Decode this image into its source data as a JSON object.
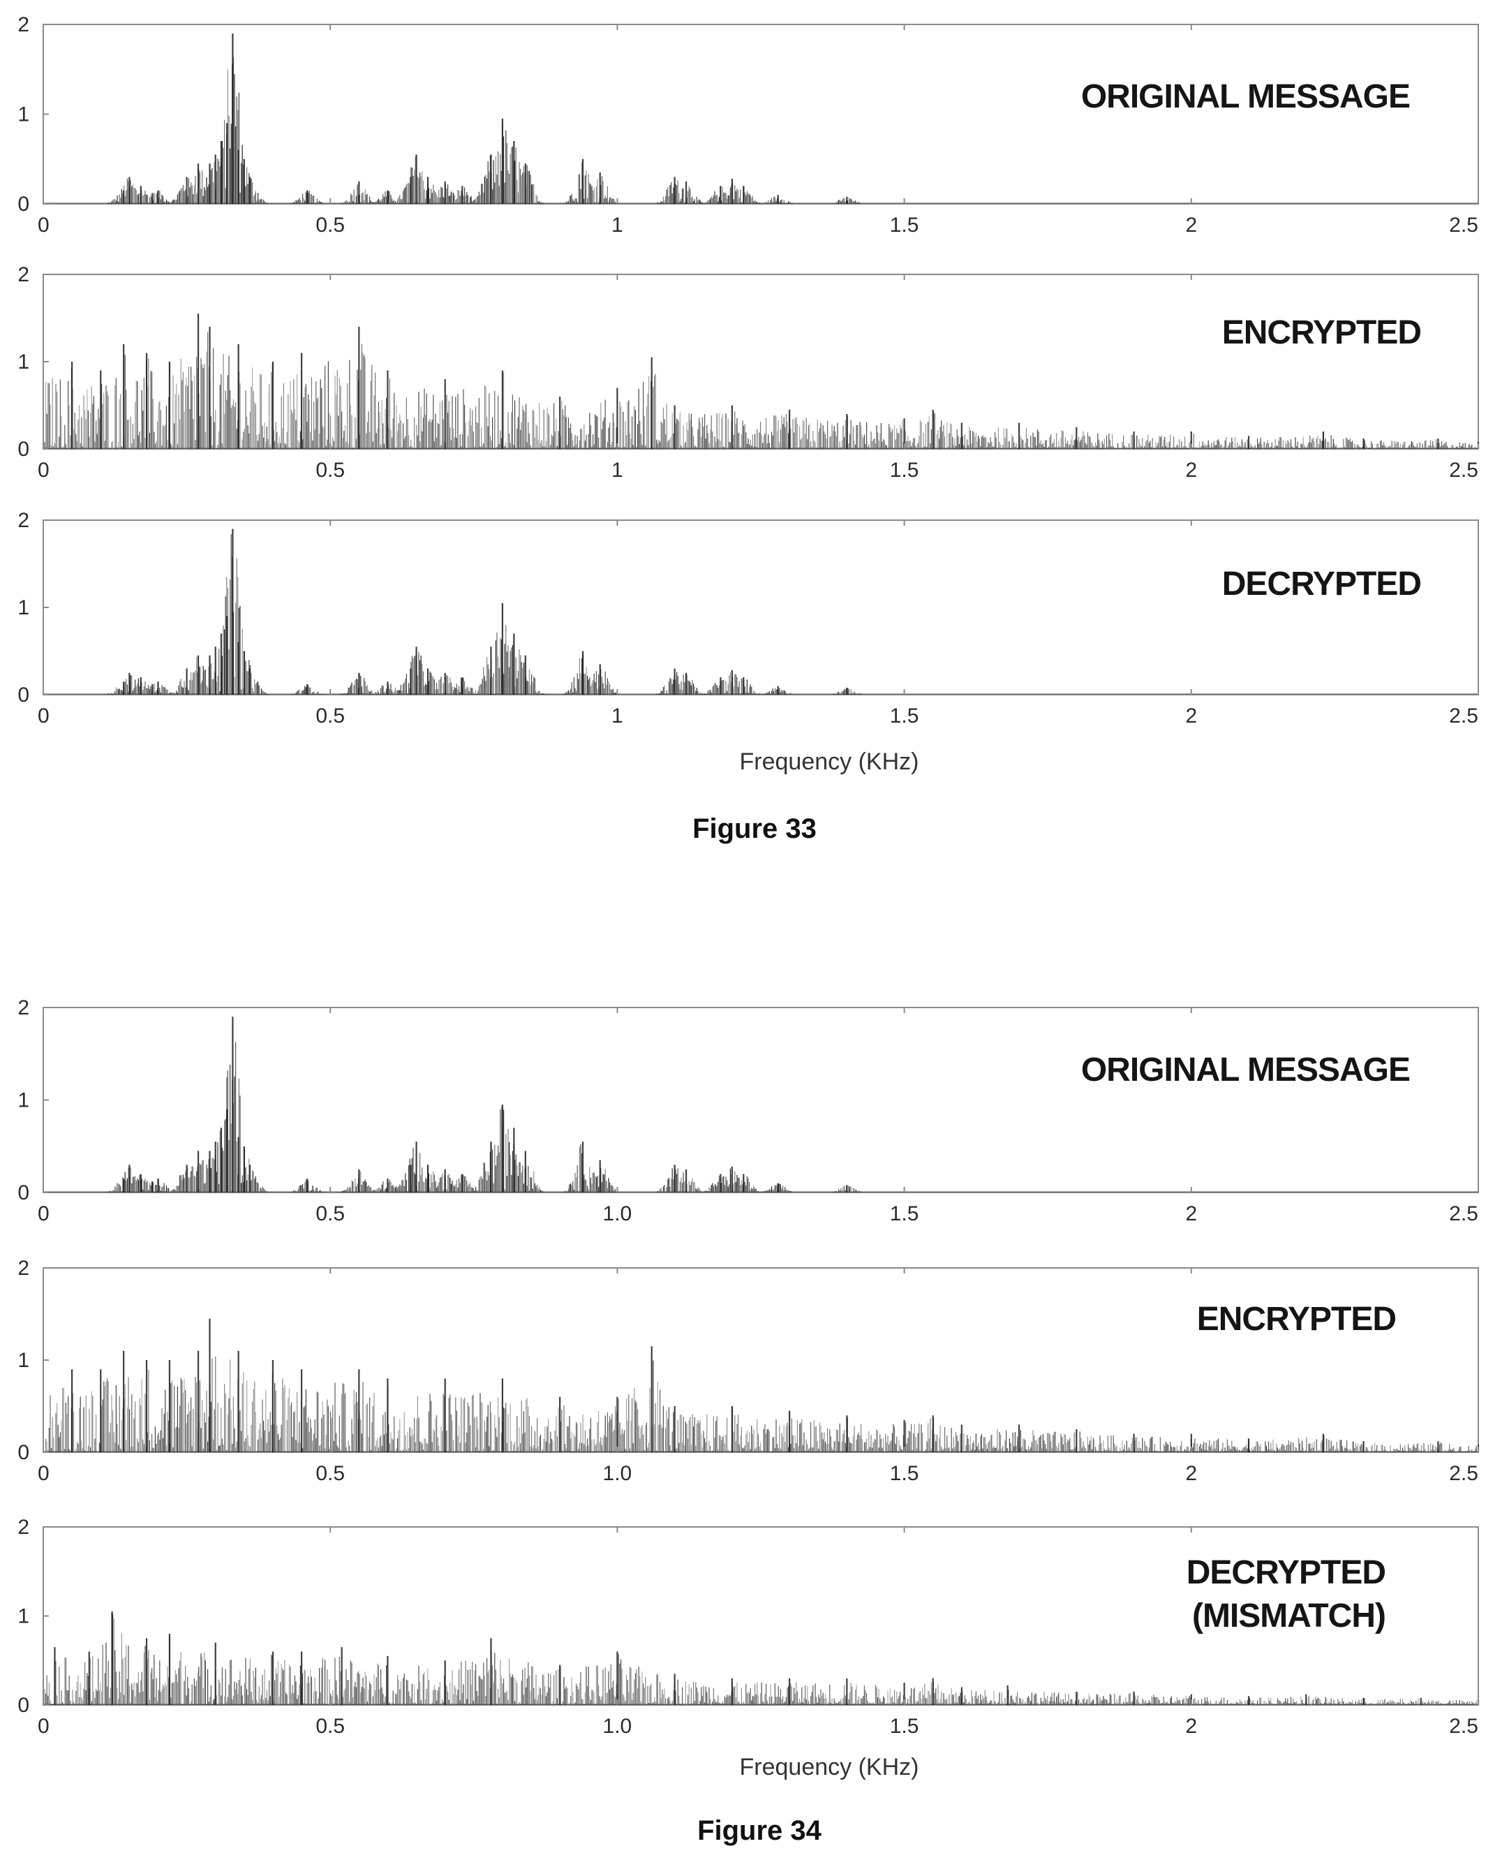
{
  "figures": [
    {
      "caption": "Figure 33",
      "xlabel": "Frequency (KHz)",
      "panels": [
        {
          "label_lines": [
            "ORIGINAL MESSAGE"
          ],
          "xtick_labels": [
            "0",
            "0.5",
            "1",
            "1.5",
            "2",
            "2.5"
          ]
        },
        {
          "label_lines": [
            "ENCRYPTED"
          ],
          "xtick_labels": [
            "0",
            "0.5",
            "1",
            "1.5",
            "2",
            "2.5"
          ]
        },
        {
          "label_lines": [
            "DECRYPTED"
          ],
          "xtick_labels": [
            "0",
            "0.5",
            "1",
            "1.5",
            "2",
            "2.5"
          ]
        }
      ]
    },
    {
      "caption": "Figure 34",
      "xlabel": "Frequency (KHz)",
      "panels": [
        {
          "label_lines": [
            "ORIGINAL MESSAGE"
          ],
          "xtick_labels": [
            "0",
            "0.5",
            "1.0",
            "1.5",
            "2",
            "2.5"
          ]
        },
        {
          "label_lines": [
            "ENCRYPTED"
          ],
          "xtick_labels": [
            "0",
            "0.5",
            "1.0",
            "1.5",
            "2",
            "2.5"
          ]
        },
        {
          "label_lines": [
            "DECRYPTED",
            "(MISMATCH)"
          ],
          "xtick_labels": [
            "0",
            "0.5",
            "1.0",
            "1.5",
            "2",
            "2.5"
          ]
        }
      ]
    }
  ],
  "colors": {
    "trace": "#1c1c1c",
    "frame": "#8a8a8a",
    "text": "#151515"
  },
  "chart_data": [
    {
      "type": "area",
      "title": "",
      "panel": "ORIGINAL MESSAGE",
      "figure": "Figure 33",
      "xlabel": "",
      "ylabel": "",
      "xlim": [
        0,
        2.5
      ],
      "ylim": [
        0,
        2
      ],
      "yticks": [
        0,
        1,
        2
      ],
      "x": [
        0.14,
        0.15,
        0.17,
        0.19,
        0.2,
        0.25,
        0.27,
        0.29,
        0.3,
        0.31,
        0.32,
        0.33,
        0.34,
        0.35,
        0.36,
        0.46,
        0.55,
        0.6,
        0.64,
        0.65,
        0.67,
        0.7,
        0.73,
        0.78,
        0.8,
        0.82,
        0.84,
        0.94,
        0.97,
        1.1,
        1.12,
        1.18,
        1.2,
        1.22,
        1.28,
        1.4
      ],
      "y": [
        0.15,
        0.3,
        0.2,
        0.12,
        0.15,
        0.3,
        0.45,
        0.45,
        0.55,
        0.7,
        0.9,
        1.9,
        0.6,
        0.5,
        0.3,
        0.15,
        0.25,
        0.15,
        0.3,
        0.55,
        0.3,
        0.25,
        0.2,
        0.55,
        0.95,
        0.7,
        0.45,
        0.5,
        0.35,
        0.3,
        0.25,
        0.2,
        0.28,
        0.2,
        0.1,
        0.08
      ]
    },
    {
      "type": "area",
      "title": "",
      "panel": "ENCRYPTED",
      "figure": "Figure 33",
      "xlabel": "",
      "ylabel": "",
      "xlim": [
        0,
        2.5
      ],
      "ylim": [
        0,
        2
      ],
      "yticks": [
        0,
        1,
        2
      ],
      "x": [
        0.05,
        0.1,
        0.14,
        0.18,
        0.22,
        0.27,
        0.29,
        0.34,
        0.4,
        0.45,
        0.55,
        0.6,
        0.7,
        0.8,
        0.9,
        1.0,
        1.06,
        1.1,
        1.2,
        1.3,
        1.4,
        1.5,
        1.55,
        1.6,
        1.7,
        1.8,
        1.9,
        2.0,
        2.1,
        2.23,
        2.3,
        2.43,
        2.5
      ],
      "y": [
        1.0,
        0.9,
        1.2,
        1.1,
        1.0,
        1.55,
        1.4,
        1.2,
        1.0,
        1.1,
        1.4,
        0.9,
        0.8,
        0.9,
        0.6,
        0.7,
        1.05,
        0.5,
        0.5,
        0.45,
        0.4,
        0.35,
        0.45,
        0.3,
        0.3,
        0.25,
        0.2,
        0.2,
        0.15,
        0.2,
        0.12,
        0.12,
        0.08
      ]
    },
    {
      "type": "area",
      "title": "",
      "panel": "DECRYPTED",
      "figure": "Figure 33",
      "xlabel": "",
      "ylabel": "",
      "xlim": [
        0,
        2.5
      ],
      "ylim": [
        0,
        2
      ],
      "yticks": [
        0,
        1,
        2
      ],
      "x": [
        0.14,
        0.15,
        0.17,
        0.19,
        0.2,
        0.25,
        0.27,
        0.29,
        0.3,
        0.31,
        0.32,
        0.33,
        0.34,
        0.35,
        0.36,
        0.46,
        0.55,
        0.6,
        0.64,
        0.65,
        0.67,
        0.7,
        0.73,
        0.78,
        0.8,
        0.82,
        0.84,
        0.94,
        0.97,
        1.1,
        1.12,
        1.18,
        1.2,
        1.22,
        1.28,
        1.4
      ],
      "y": [
        0.15,
        0.25,
        0.2,
        0.12,
        0.15,
        0.3,
        0.45,
        0.45,
        0.55,
        0.7,
        0.9,
        1.9,
        0.6,
        0.5,
        0.3,
        0.12,
        0.25,
        0.15,
        0.3,
        0.55,
        0.3,
        0.25,
        0.2,
        0.55,
        1.05,
        0.7,
        0.45,
        0.5,
        0.35,
        0.3,
        0.25,
        0.2,
        0.28,
        0.2,
        0.1,
        0.08
      ]
    },
    {
      "type": "area",
      "title": "",
      "panel": "ORIGINAL MESSAGE",
      "figure": "Figure 34",
      "xlabel": "",
      "ylabel": "",
      "xlim": [
        0,
        2.5
      ],
      "ylim": [
        0,
        2
      ],
      "yticks": [
        0,
        1,
        2
      ],
      "x": [
        0.14,
        0.15,
        0.17,
        0.19,
        0.2,
        0.25,
        0.27,
        0.29,
        0.3,
        0.31,
        0.32,
        0.33,
        0.34,
        0.35,
        0.36,
        0.46,
        0.55,
        0.6,
        0.64,
        0.65,
        0.67,
        0.7,
        0.73,
        0.78,
        0.8,
        0.82,
        0.84,
        0.94,
        0.97,
        1.1,
        1.12,
        1.18,
        1.2,
        1.22,
        1.28,
        1.4
      ],
      "y": [
        0.15,
        0.3,
        0.2,
        0.12,
        0.15,
        0.3,
        0.45,
        0.45,
        0.55,
        0.7,
        0.9,
        1.9,
        0.6,
        0.5,
        0.3,
        0.15,
        0.25,
        0.15,
        0.3,
        0.55,
        0.3,
        0.25,
        0.2,
        0.55,
        0.95,
        0.7,
        0.45,
        0.55,
        0.35,
        0.3,
        0.25,
        0.2,
        0.28,
        0.2,
        0.1,
        0.08
      ]
    },
    {
      "type": "area",
      "title": "",
      "panel": "ENCRYPTED",
      "figure": "Figure 34",
      "xlabel": "",
      "ylabel": "",
      "xlim": [
        0,
        2.5
      ],
      "ylim": [
        0,
        2
      ],
      "yticks": [
        0,
        1,
        2
      ],
      "x": [
        0.05,
        0.1,
        0.14,
        0.18,
        0.22,
        0.27,
        0.29,
        0.34,
        0.4,
        0.45,
        0.55,
        0.6,
        0.7,
        0.8,
        0.9,
        1.0,
        1.06,
        1.1,
        1.2,
        1.3,
        1.4,
        1.5,
        1.55,
        1.6,
        1.7,
        1.8,
        1.9,
        2.0,
        2.1,
        2.23,
        2.3,
        2.43,
        2.5
      ],
      "y": [
        0.9,
        0.9,
        1.1,
        1.0,
        1.0,
        1.1,
        1.45,
        1.1,
        1.0,
        0.9,
        0.9,
        0.8,
        0.8,
        0.8,
        0.6,
        0.6,
        1.15,
        0.5,
        0.5,
        0.45,
        0.4,
        0.35,
        0.4,
        0.3,
        0.3,
        0.25,
        0.2,
        0.2,
        0.15,
        0.2,
        0.12,
        0.12,
        0.08
      ]
    },
    {
      "type": "area",
      "title": "",
      "panel": "DECRYPTED (MISMATCH)",
      "figure": "Figure 34",
      "xlabel": "",
      "ylabel": "",
      "xlim": [
        0,
        2.5
      ],
      "ylim": [
        0,
        2
      ],
      "yticks": [
        0,
        1,
        2
      ],
      "x": [
        0.02,
        0.08,
        0.12,
        0.18,
        0.22,
        0.3,
        0.4,
        0.45,
        0.52,
        0.6,
        0.7,
        0.78,
        0.9,
        1.0,
        1.1,
        1.2,
        1.3,
        1.4,
        1.5,
        1.55,
        1.6,
        1.68,
        1.8,
        1.9,
        2.0,
        2.1,
        2.2,
        2.3,
        2.4,
        2.5
      ],
      "y": [
        0.65,
        0.6,
        1.05,
        0.75,
        0.8,
        0.7,
        0.6,
        0.6,
        0.65,
        0.55,
        0.5,
        0.75,
        0.45,
        0.6,
        0.35,
        0.3,
        0.3,
        0.3,
        0.25,
        0.3,
        0.2,
        0.22,
        0.15,
        0.15,
        0.12,
        0.1,
        0.12,
        0.08,
        0.08,
        0.06
      ]
    }
  ]
}
